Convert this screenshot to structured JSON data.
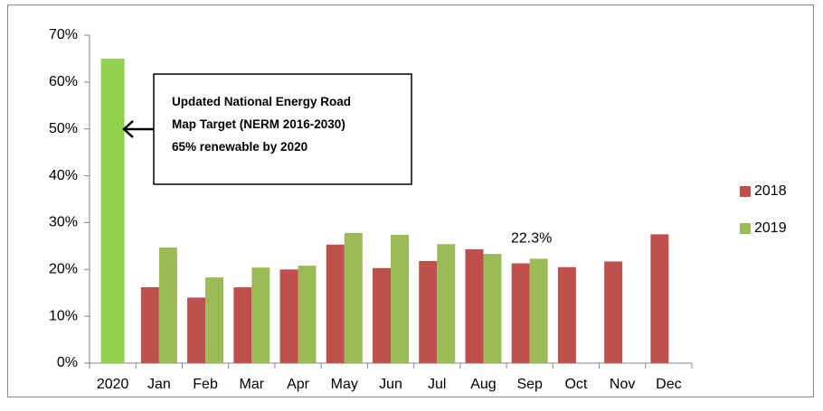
{
  "chart_data": {
    "type": "bar",
    "categories": [
      "2020",
      "Jan",
      "Feb",
      "Mar",
      "Apr",
      "May",
      "Jun",
      "Jul",
      "Aug",
      "Sep",
      "Oct",
      "Nov",
      "Dec"
    ],
    "series": [
      {
        "name": "2018",
        "color": "#c0504d",
        "values": [
          null,
          16.2,
          14,
          16.2,
          20,
          25.3,
          20.3,
          21.8,
          24.3,
          21.3,
          20.5,
          21.7,
          27.5
        ]
      },
      {
        "name": "2019",
        "color": "#9bbb59",
        "values": [
          null,
          24.7,
          18.3,
          20.4,
          20.8,
          27.8,
          27.4,
          25.4,
          23.3,
          22.3,
          null,
          null,
          null
        ],
        "value_labels": [
          null,
          null,
          null,
          null,
          null,
          null,
          null,
          null,
          null,
          "22.3%",
          null,
          null,
          null
        ]
      }
    ],
    "target_bar": {
      "value": 65,
      "color": "#92d050"
    },
    "annotation": [
      "Updated National Energy Road",
      "Map Target  (NERM 2016-2030)",
      "65% renewable by 2020"
    ],
    "ylim": [
      0,
      70
    ],
    "yticks": [
      {
        "value": 0,
        "label": "0%"
      },
      {
        "value": 10,
        "label": "10%"
      },
      {
        "value": 20,
        "label": "20%"
      },
      {
        "value": 30,
        "label": "30%"
      },
      {
        "value": 40,
        "label": "40%"
      },
      {
        "value": 50,
        "label": "50%"
      },
      {
        "value": 60,
        "label": "60%"
      },
      {
        "value": 70,
        "label": "70%"
      }
    ],
    "grid": false,
    "legend": "right"
  }
}
